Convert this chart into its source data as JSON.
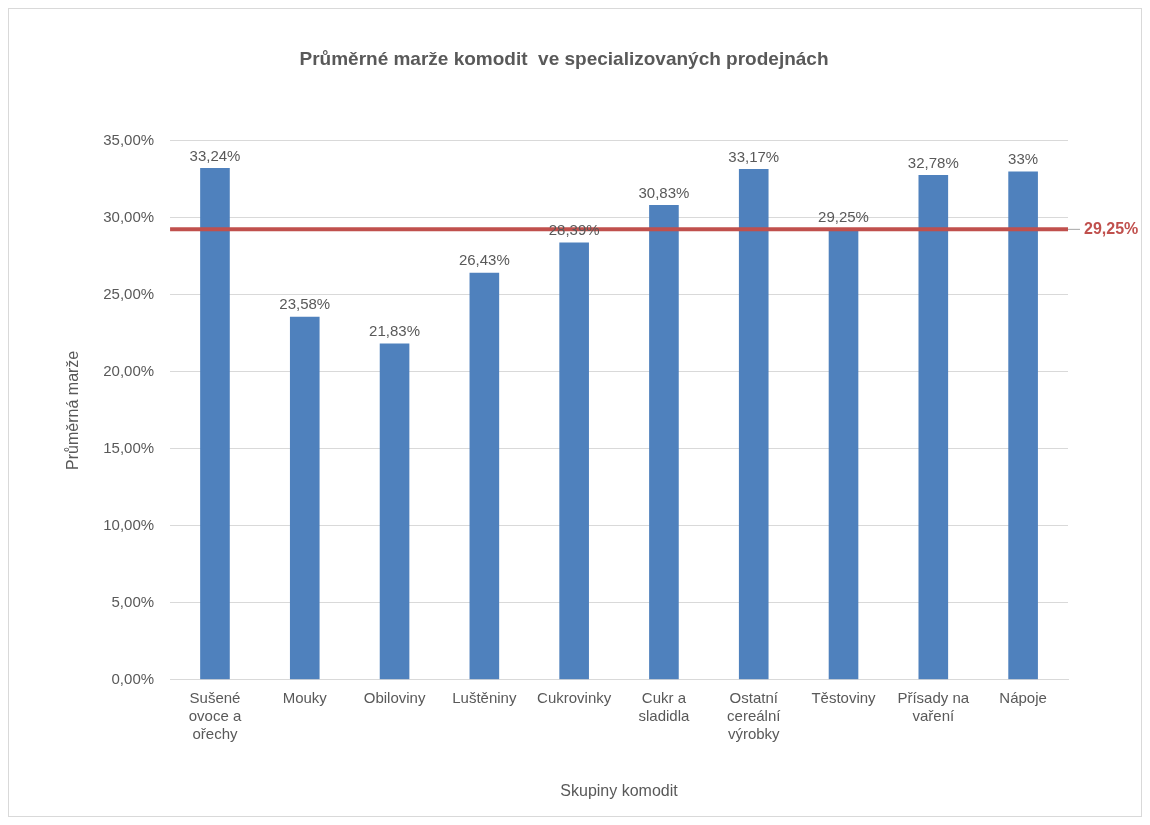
{
  "chart_data": {
    "type": "bar",
    "title": "Průměrné marže komodit  ve specializovaných prodejnách",
    "xlabel": "Skupiny komodit",
    "ylabel": "Průměrná marže",
    "categories": [
      "Sušené ovoce a ořechy",
      "Mouky",
      "Obiloviny",
      "Luštěniny",
      "Cukrovinky",
      "Cukr a sladidla",
      "Ostatní cereální výrobky",
      "Těstoviny",
      "Přísady na vaření",
      "Nápoje"
    ],
    "values": [
      33.24,
      23.58,
      21.83,
      26.43,
      28.39,
      30.83,
      33.17,
      29.25,
      32.78,
      33
    ],
    "value_labels": [
      "33,24%",
      "23,58%",
      "21,83%",
      "26,43%",
      "28,39%",
      "30,83%",
      "33,17%",
      "29,25%",
      "32,78%",
      "33%"
    ],
    "color": "#4f81bd",
    "ylim": [
      0,
      35
    ],
    "yticks": [
      {
        "value": 0,
        "label": "0,00%"
      },
      {
        "value": 5,
        "label": "5,00%"
      },
      {
        "value": 10,
        "label": "10,00%"
      },
      {
        "value": 15,
        "label": "15,00%"
      },
      {
        "value": 20,
        "label": "20,00%"
      },
      {
        "value": 25,
        "label": "25,00%"
      },
      {
        "value": 30,
        "label": "30,00%"
      },
      {
        "value": 35,
        "label": "35,00%"
      }
    ],
    "grid": "y",
    "legend": false,
    "ref_lines": [
      {
        "axis": "y",
        "value": 29.25,
        "label": "29,25%",
        "color": "#c0504d"
      }
    ]
  }
}
